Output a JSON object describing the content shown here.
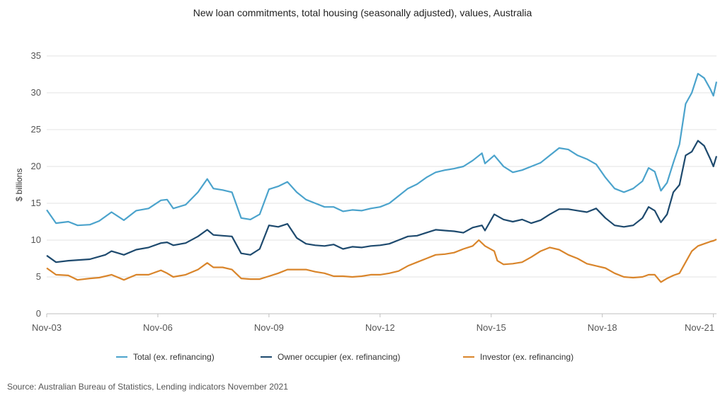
{
  "chart_data": {
    "type": "line",
    "title": "New loan commitments, total housing (seasonally adjusted), values, Australia",
    "ylabel": "$ billions",
    "xlabel": "",
    "ylim": [
      0,
      35
    ],
    "yticks": [
      0,
      5,
      10,
      15,
      20,
      25,
      30,
      35
    ],
    "x_start": "Nov-03",
    "x_end": "Dec-21",
    "xticks": [
      "Nov-03",
      "Nov-06",
      "Nov-09",
      "Nov-12",
      "Nov-15",
      "Nov-18",
      "Nov-21"
    ],
    "grid": "horizontal",
    "legend_position": "bottom",
    "source": "Source: Australian Bureau of Statistics, Lending indicators November 2021",
    "series": [
      {
        "name": "Total (ex. refinancing)",
        "color": "#4ba3cc",
        "points": [
          [
            "Nov-03",
            14.1
          ],
          [
            "Feb-04",
            12.3
          ],
          [
            "Jun-04",
            12.5
          ],
          [
            "Sep-04",
            12.0
          ],
          [
            "Jan-05",
            12.1
          ],
          [
            "Apr-05",
            12.6
          ],
          [
            "Aug-05",
            13.8
          ],
          [
            "Dec-05",
            12.7
          ],
          [
            "Apr-06",
            14.0
          ],
          [
            "Aug-06",
            14.3
          ],
          [
            "Dec-06",
            15.4
          ],
          [
            "Feb-07",
            15.5
          ],
          [
            "Apr-07",
            14.3
          ],
          [
            "Aug-07",
            14.8
          ],
          [
            "Dec-07",
            16.5
          ],
          [
            "Mar-08",
            18.3
          ],
          [
            "May-08",
            17.0
          ],
          [
            "Aug-08",
            16.8
          ],
          [
            "Nov-08",
            16.5
          ],
          [
            "Feb-09",
            13.0
          ],
          [
            "May-09",
            12.8
          ],
          [
            "Aug-09",
            13.5
          ],
          [
            "Nov-09",
            16.9
          ],
          [
            "Feb-10",
            17.3
          ],
          [
            "May-10",
            17.9
          ],
          [
            "Aug-10",
            16.5
          ],
          [
            "Nov-10",
            15.5
          ],
          [
            "Feb-11",
            15.0
          ],
          [
            "May-11",
            14.5
          ],
          [
            "Aug-11",
            14.5
          ],
          [
            "Nov-11",
            13.9
          ],
          [
            "Feb-12",
            14.1
          ],
          [
            "May-12",
            14.0
          ],
          [
            "Aug-12",
            14.3
          ],
          [
            "Nov-12",
            14.5
          ],
          [
            "Feb-13",
            15.0
          ],
          [
            "May-13",
            16.0
          ],
          [
            "Aug-13",
            17.0
          ],
          [
            "Nov-13",
            17.6
          ],
          [
            "Feb-14",
            18.5
          ],
          [
            "May-14",
            19.2
          ],
          [
            "Aug-14",
            19.5
          ],
          [
            "Nov-14",
            19.7
          ],
          [
            "Feb-15",
            20.0
          ],
          [
            "May-15",
            20.8
          ],
          [
            "Aug-15",
            21.8
          ],
          [
            "Sep-15",
            20.4
          ],
          [
            "Dec-15",
            21.5
          ],
          [
            "Mar-16",
            20.0
          ],
          [
            "Jun-16",
            19.2
          ],
          [
            "Sep-16",
            19.5
          ],
          [
            "Dec-16",
            20.0
          ],
          [
            "Mar-17",
            20.5
          ],
          [
            "Jun-17",
            21.5
          ],
          [
            "Sep-17",
            22.5
          ],
          [
            "Dec-17",
            22.3
          ],
          [
            "Mar-18",
            21.5
          ],
          [
            "Jun-18",
            21.0
          ],
          [
            "Sep-18",
            20.3
          ],
          [
            "Dec-18",
            18.5
          ],
          [
            "Mar-19",
            17.0
          ],
          [
            "Jun-19",
            16.5
          ],
          [
            "Sep-19",
            17.0
          ],
          [
            "Dec-19",
            18.0
          ],
          [
            "Feb-20",
            19.8
          ],
          [
            "Apr-20",
            19.3
          ],
          [
            "Jun-20",
            16.7
          ],
          [
            "Aug-20",
            17.8
          ],
          [
            "Oct-20",
            20.5
          ],
          [
            "Dec-20",
            23.0
          ],
          [
            "Feb-21",
            28.5
          ],
          [
            "Apr-21",
            30.0
          ],
          [
            "Jun-21",
            32.6
          ],
          [
            "Aug-21",
            32.0
          ],
          [
            "Oct-21",
            30.5
          ],
          [
            "Nov-21",
            29.6
          ],
          [
            "Dec-21",
            31.5
          ]
        ]
      },
      {
        "name": "Owner occupier (ex. refinancing)",
        "color": "#1e4a6e",
        "points": [
          [
            "Nov-03",
            7.9
          ],
          [
            "Feb-04",
            7.0
          ],
          [
            "Jun-04",
            7.2
          ],
          [
            "Jan-05",
            7.4
          ],
          [
            "Jun-05",
            8.0
          ],
          [
            "Aug-05",
            8.5
          ],
          [
            "Dec-05",
            8.0
          ],
          [
            "Apr-06",
            8.7
          ],
          [
            "Aug-06",
            9.0
          ],
          [
            "Dec-06",
            9.6
          ],
          [
            "Feb-07",
            9.7
          ],
          [
            "Apr-07",
            9.3
          ],
          [
            "Aug-07",
            9.6
          ],
          [
            "Dec-07",
            10.5
          ],
          [
            "Mar-08",
            11.4
          ],
          [
            "May-08",
            10.7
          ],
          [
            "Aug-08",
            10.6
          ],
          [
            "Nov-08",
            10.5
          ],
          [
            "Feb-09",
            8.2
          ],
          [
            "May-09",
            8.0
          ],
          [
            "Aug-09",
            8.8
          ],
          [
            "Nov-09",
            12.0
          ],
          [
            "Feb-10",
            11.8
          ],
          [
            "May-10",
            12.2
          ],
          [
            "Aug-10",
            10.3
          ],
          [
            "Nov-10",
            9.5
          ],
          [
            "Feb-11",
            9.3
          ],
          [
            "May-11",
            9.2
          ],
          [
            "Aug-11",
            9.4
          ],
          [
            "Nov-11",
            8.8
          ],
          [
            "Feb-12",
            9.1
          ],
          [
            "May-12",
            9.0
          ],
          [
            "Aug-12",
            9.2
          ],
          [
            "Nov-12",
            9.3
          ],
          [
            "Feb-13",
            9.5
          ],
          [
            "May-13",
            10.0
          ],
          [
            "Aug-13",
            10.5
          ],
          [
            "Nov-13",
            10.6
          ],
          [
            "Feb-14",
            11.0
          ],
          [
            "May-14",
            11.4
          ],
          [
            "Aug-14",
            11.3
          ],
          [
            "Nov-14",
            11.2
          ],
          [
            "Feb-15",
            11.0
          ],
          [
            "May-15",
            11.7
          ],
          [
            "Aug-15",
            12.0
          ],
          [
            "Sep-15",
            11.3
          ],
          [
            "Dec-15",
            13.5
          ],
          [
            "Mar-16",
            12.8
          ],
          [
            "Jun-16",
            12.5
          ],
          [
            "Sep-16",
            12.8
          ],
          [
            "Dec-16",
            12.3
          ],
          [
            "Mar-17",
            12.7
          ],
          [
            "Jun-17",
            13.5
          ],
          [
            "Sep-17",
            14.2
          ],
          [
            "Dec-17",
            14.2
          ],
          [
            "Mar-18",
            14.0
          ],
          [
            "Jun-18",
            13.8
          ],
          [
            "Sep-18",
            14.3
          ],
          [
            "Dec-18",
            13.0
          ],
          [
            "Mar-19",
            12.0
          ],
          [
            "Jun-19",
            11.8
          ],
          [
            "Sep-19",
            12.0
          ],
          [
            "Dec-19",
            13.0
          ],
          [
            "Feb-20",
            14.5
          ],
          [
            "Apr-20",
            14.0
          ],
          [
            "Jun-20",
            12.4
          ],
          [
            "Aug-20",
            13.5
          ],
          [
            "Oct-20",
            16.5
          ],
          [
            "Dec-20",
            17.5
          ],
          [
            "Feb-21",
            21.5
          ],
          [
            "Apr-21",
            22.0
          ],
          [
            "Jun-21",
            23.5
          ],
          [
            "Aug-21",
            22.8
          ],
          [
            "Oct-21",
            21.0
          ],
          [
            "Nov-21",
            20.0
          ],
          [
            "Dec-21",
            21.4
          ]
        ]
      },
      {
        "name": "Investor (ex. refinancing)",
        "color": "#d9852b",
        "points": [
          [
            "Nov-03",
            6.2
          ],
          [
            "Feb-04",
            5.3
          ],
          [
            "Jun-04",
            5.2
          ],
          [
            "Sep-04",
            4.6
          ],
          [
            "Jan-05",
            4.8
          ],
          [
            "Apr-05",
            4.9
          ],
          [
            "Aug-05",
            5.3
          ],
          [
            "Dec-05",
            4.6
          ],
          [
            "Apr-06",
            5.3
          ],
          [
            "Aug-06",
            5.3
          ],
          [
            "Dec-06",
            5.9
          ],
          [
            "Feb-07",
            5.5
          ],
          [
            "Apr-07",
            5.0
          ],
          [
            "Aug-07",
            5.3
          ],
          [
            "Dec-07",
            6.0
          ],
          [
            "Mar-08",
            6.9
          ],
          [
            "May-08",
            6.3
          ],
          [
            "Aug-08",
            6.3
          ],
          [
            "Nov-08",
            6.0
          ],
          [
            "Feb-09",
            4.8
          ],
          [
            "May-09",
            4.7
          ],
          [
            "Aug-09",
            4.7
          ],
          [
            "Nov-09",
            5.1
          ],
          [
            "Feb-10",
            5.5
          ],
          [
            "May-10",
            6.0
          ],
          [
            "Aug-10",
            6.0
          ],
          [
            "Nov-10",
            6.0
          ],
          [
            "Feb-11",
            5.7
          ],
          [
            "May-11",
            5.5
          ],
          [
            "Aug-11",
            5.1
          ],
          [
            "Nov-11",
            5.1
          ],
          [
            "Feb-12",
            5.0
          ],
          [
            "May-12",
            5.1
          ],
          [
            "Aug-12",
            5.3
          ],
          [
            "Nov-12",
            5.3
          ],
          [
            "Feb-13",
            5.5
          ],
          [
            "May-13",
            5.8
          ],
          [
            "Aug-13",
            6.5
          ],
          [
            "Nov-13",
            7.0
          ],
          [
            "Feb-14",
            7.5
          ],
          [
            "May-14",
            8.0
          ],
          [
            "Aug-14",
            8.1
          ],
          [
            "Nov-14",
            8.3
          ],
          [
            "Feb-15",
            8.8
          ],
          [
            "May-15",
            9.2
          ],
          [
            "Jul-15",
            10.0
          ],
          [
            "Sep-15",
            9.2
          ],
          [
            "Dec-15",
            8.5
          ],
          [
            "Jan-16",
            7.2
          ],
          [
            "Mar-16",
            6.7
          ],
          [
            "Jun-16",
            6.8
          ],
          [
            "Sep-16",
            7.0
          ],
          [
            "Dec-16",
            7.7
          ],
          [
            "Mar-17",
            8.5
          ],
          [
            "Jun-17",
            9.0
          ],
          [
            "Sep-17",
            8.7
          ],
          [
            "Dec-17",
            8.0
          ],
          [
            "Mar-18",
            7.5
          ],
          [
            "Jun-18",
            6.8
          ],
          [
            "Sep-18",
            6.5
          ],
          [
            "Dec-18",
            6.2
          ],
          [
            "Mar-19",
            5.5
          ],
          [
            "Jun-19",
            5.0
          ],
          [
            "Sep-19",
            4.9
          ],
          [
            "Dec-19",
            5.0
          ],
          [
            "Feb-20",
            5.3
          ],
          [
            "Apr-20",
            5.3
          ],
          [
            "Jun-20",
            4.3
          ],
          [
            "Aug-20",
            4.8
          ],
          [
            "Oct-20",
            5.2
          ],
          [
            "Dec-20",
            5.5
          ],
          [
            "Feb-21",
            7.0
          ],
          [
            "Apr-21",
            8.5
          ],
          [
            "Jun-21",
            9.2
          ],
          [
            "Aug-21",
            9.5
          ],
          [
            "Oct-21",
            9.8
          ],
          [
            "Nov-21",
            9.9
          ],
          [
            "Dec-21",
            10.1
          ]
        ]
      }
    ]
  }
}
